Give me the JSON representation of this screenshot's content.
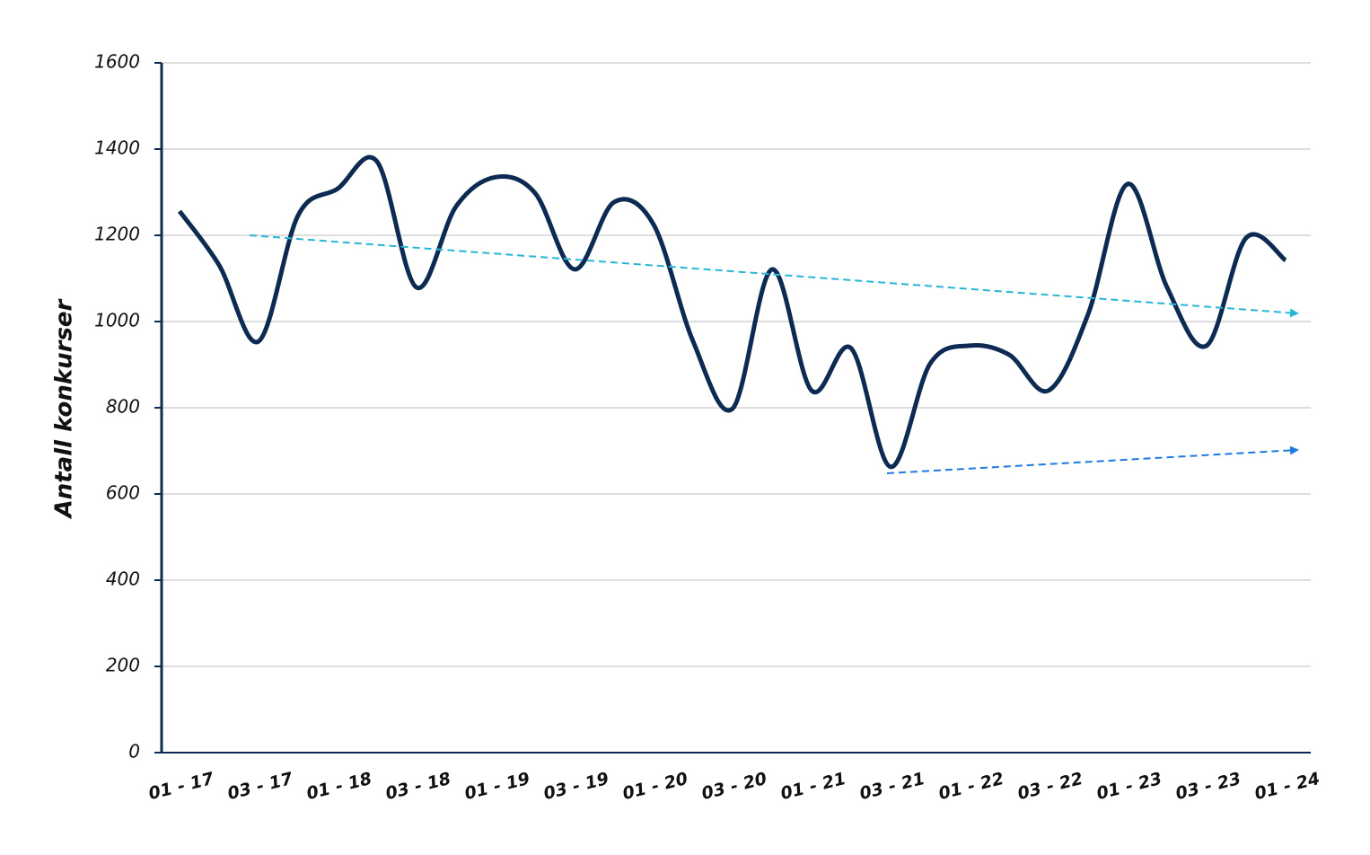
{
  "chart_data": {
    "type": "line",
    "y_label": "Antall konkurser",
    "categories": [
      "01 - 17",
      null,
      "03 - 17",
      null,
      "01 - 18",
      null,
      "03 - 18",
      null,
      "01 - 19",
      null,
      "03 - 19",
      null,
      "01 - 20",
      null,
      "03 - 20",
      null,
      "01 - 21",
      null,
      "03 - 21",
      null,
      "01 - 22",
      null,
      "03 - 22",
      null,
      "01 - 23",
      null,
      "03 - 23",
      null,
      "01 - 24"
    ],
    "series": [
      {
        "color": "#0d2b52",
        "values": [
          1256,
          1131,
          954,
          1246,
          1308,
          1371,
          1079,
          1267,
          1335,
          1298,
          1121,
          1277,
          1225,
          954,
          798,
          1121,
          840,
          938,
          663,
          902,
          944,
          923,
          840,
          1017,
          1319,
          1079,
          944,
          1194,
          1142
        ]
      }
    ],
    "ylim": [
      0,
      1600
    ],
    "yticks": [
      0,
      200,
      400,
      600,
      800,
      1000,
      1200,
      1400,
      1600
    ],
    "grid": true
  }
}
